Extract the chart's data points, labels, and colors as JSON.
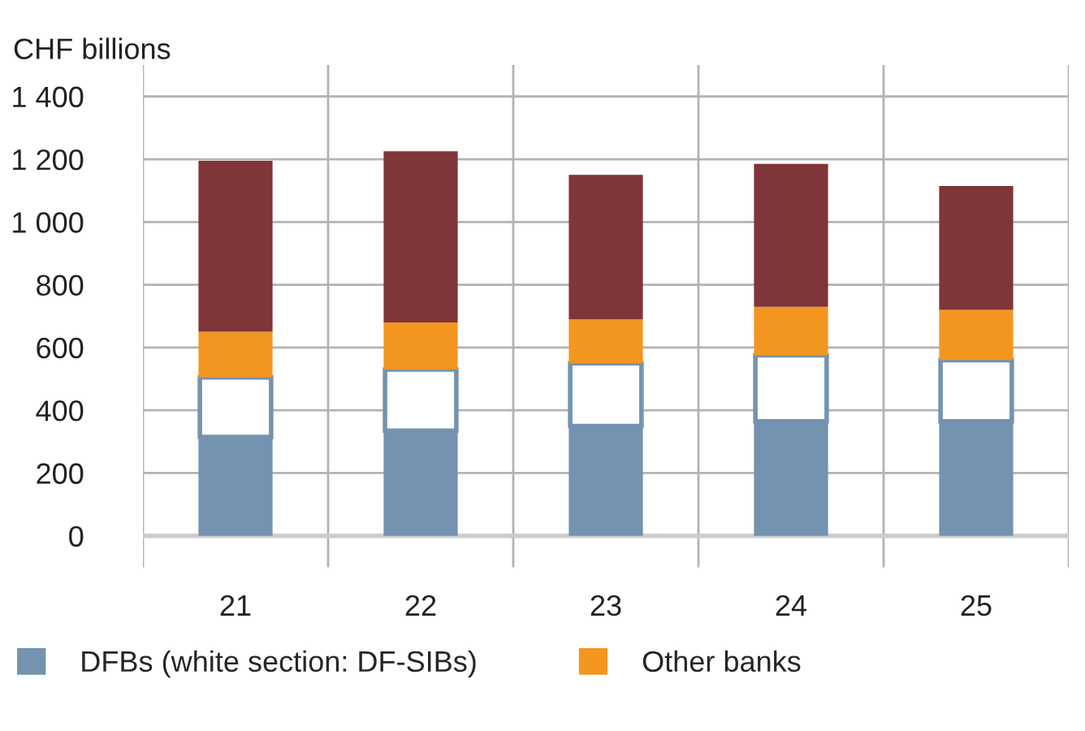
{
  "chart_data": {
    "type": "bar",
    "stacked": true,
    "ylabel": "CHF billions",
    "categories": [
      "21",
      "22",
      "23",
      "24",
      "25"
    ],
    "series": [
      {
        "name": "DFBs (white section: DF-SIBs)",
        "color": "#7393b0",
        "values": [
          315,
          335,
          350,
          365,
          365
        ]
      },
      {
        "color": "#ffffff",
        "values": [
          190,
          195,
          200,
          210,
          195
        ]
      },
      {
        "name": "Other banks",
        "color": "#f39620",
        "values": [
          145,
          150,
          140,
          155,
          160
        ]
      },
      {
        "color": "#803538",
        "values": [
          545,
          545,
          460,
          455,
          395
        ]
      }
    ],
    "ylim": [
      -100,
      1500
    ],
    "yticks": [
      0,
      200,
      400,
      600,
      800,
      {
        "value": 1000,
        "label": "1 000"
      },
      {
        "value": 1200,
        "label": "1 200"
      },
      {
        "value": 1400,
        "label": "1 400"
      }
    ],
    "grid": true,
    "legend": "bottom"
  }
}
